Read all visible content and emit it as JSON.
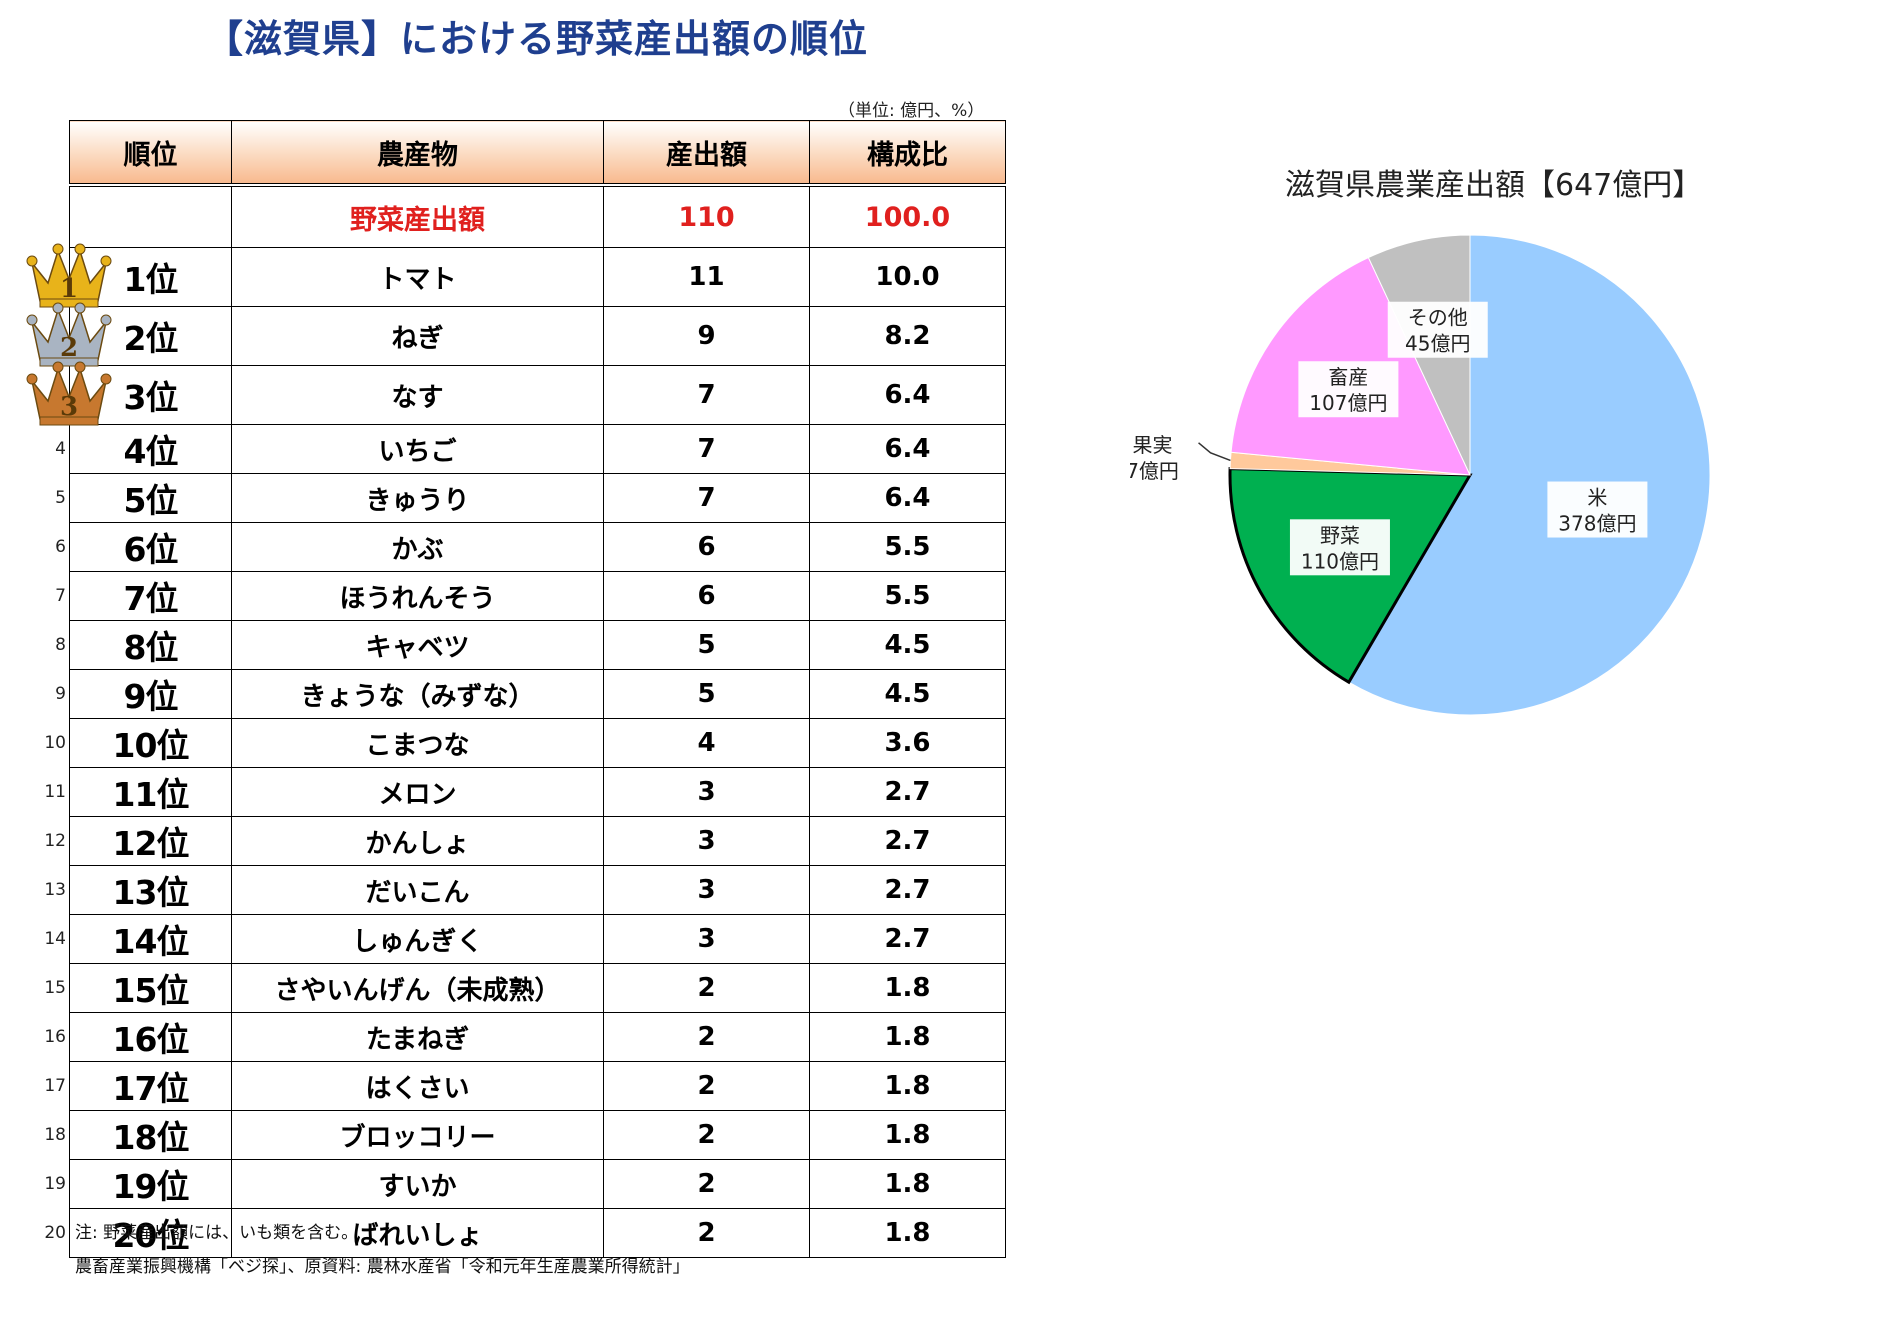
{
  "title": "【滋賀県】における野菜産出額の順位",
  "unit_note": "（単位: 億円、%）",
  "table": {
    "headers": [
      "順位",
      "農産物",
      "産出額",
      "構成比"
    ],
    "total": {
      "label": "野菜産出額",
      "value": "110",
      "share": "100.0"
    },
    "rows": [
      {
        "no": "",
        "rank": "1位",
        "crop": "トマト",
        "value": "11",
        "share": "10.0"
      },
      {
        "no": "",
        "rank": "2位",
        "crop": "ねぎ",
        "value": "9",
        "share": "8.2"
      },
      {
        "no": "",
        "rank": "3位",
        "crop": "なす",
        "value": "7",
        "share": "6.4"
      },
      {
        "no": "4",
        "rank": "4位",
        "crop": "いちご",
        "value": "7",
        "share": "6.4"
      },
      {
        "no": "5",
        "rank": "5位",
        "crop": "きゅうり",
        "value": "7",
        "share": "6.4"
      },
      {
        "no": "6",
        "rank": "6位",
        "crop": "かぶ",
        "value": "6",
        "share": "5.5"
      },
      {
        "no": "7",
        "rank": "7位",
        "crop": "ほうれんそう",
        "value": "6",
        "share": "5.5"
      },
      {
        "no": "8",
        "rank": "8位",
        "crop": "キャベツ",
        "value": "5",
        "share": "4.5"
      },
      {
        "no": "9",
        "rank": "9位",
        "crop": "きょうな（みずな）",
        "value": "5",
        "share": "4.5"
      },
      {
        "no": "10",
        "rank": "10位",
        "crop": "こまつな",
        "value": "4",
        "share": "3.6"
      },
      {
        "no": "11",
        "rank": "11位",
        "crop": "メロン",
        "value": "3",
        "share": "2.7"
      },
      {
        "no": "12",
        "rank": "12位",
        "crop": "かんしょ",
        "value": "3",
        "share": "2.7"
      },
      {
        "no": "13",
        "rank": "13位",
        "crop": "だいこん",
        "value": "3",
        "share": "2.7"
      },
      {
        "no": "14",
        "rank": "14位",
        "crop": "しゅんぎく",
        "value": "3",
        "share": "2.7"
      },
      {
        "no": "15",
        "rank": "15位",
        "crop": "さやいんげん（未成熟）",
        "value": "2",
        "share": "1.8"
      },
      {
        "no": "16",
        "rank": "16位",
        "crop": "たまねぎ",
        "value": "2",
        "share": "1.8"
      },
      {
        "no": "17",
        "rank": "17位",
        "crop": "はくさい",
        "value": "2",
        "share": "1.8"
      },
      {
        "no": "18",
        "rank": "18位",
        "crop": "ブロッコリー",
        "value": "2",
        "share": "1.8"
      },
      {
        "no": "19",
        "rank": "19位",
        "crop": "すいか",
        "value": "2",
        "share": "1.8"
      },
      {
        "no": "20",
        "rank": "20位",
        "crop": "ばれいしょ",
        "value": "2",
        "share": "1.8"
      }
    ]
  },
  "crowns": [
    {
      "label": "1",
      "color": "#e8b31a"
    },
    {
      "label": "2",
      "color": "#a9b4c2"
    },
    {
      "label": "3",
      "color": "#c7782f"
    }
  ],
  "notes": {
    "note1": "注: 野菜産出額には、いも類を含む。",
    "source": "農畜産業振興機構「ベジ探」、原資料: 農林水産省「令和元年生産農業所得統計」"
  },
  "chart_data": {
    "type": "pie",
    "title": "滋賀県農業産出額【647億円】",
    "categories": [
      "米",
      "野菜",
      "果実",
      "畜産",
      "その他"
    ],
    "values": [
      378,
      110,
      7,
      107,
      45
    ],
    "labels": [
      [
        "米",
        "378億円"
      ],
      [
        "野菜",
        "110億円"
      ],
      [
        "果実",
        "7億円"
      ],
      [
        "畜産",
        "107億円"
      ],
      [
        "その他",
        "45億円"
      ]
    ],
    "colors": [
      "#99ccff",
      "#00b050",
      "#ffc99c",
      "#ff99ff",
      "#c0c0c0"
    ],
    "highlighted": "野菜",
    "start": "12 o'clock",
    "direction": "clockwise"
  }
}
